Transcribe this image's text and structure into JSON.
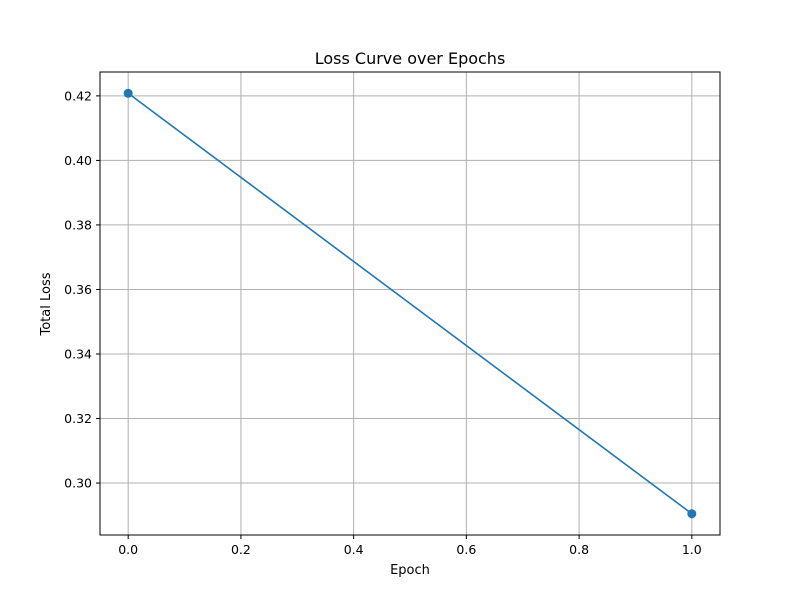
{
  "chart_data": {
    "type": "line",
    "title": "Loss Curve over Epochs",
    "xlabel": "Epoch",
    "ylabel": "Total Loss",
    "x": [
      0,
      1
    ],
    "series": [
      {
        "values": [
          0.4208,
          0.2905
        ],
        "color": "#1f77b4",
        "marker": "circle"
      }
    ],
    "xlim": [
      -0.05,
      1.05
    ],
    "ylim": [
      0.2839,
      0.4274
    ],
    "xticks": [
      0.0,
      0.2,
      0.4,
      0.6,
      0.8,
      1.0
    ],
    "xtick_labels": [
      "0.0",
      "0.2",
      "0.4",
      "0.6",
      "0.8",
      "1.0"
    ],
    "yticks": [
      0.3,
      0.32,
      0.34,
      0.36,
      0.38,
      0.4,
      0.42
    ],
    "ytick_labels": [
      "0.30",
      "0.32",
      "0.34",
      "0.36",
      "0.38",
      "0.40",
      "0.42"
    ],
    "grid": true,
    "grid_color": "#b0b0b0",
    "legend": false
  }
}
